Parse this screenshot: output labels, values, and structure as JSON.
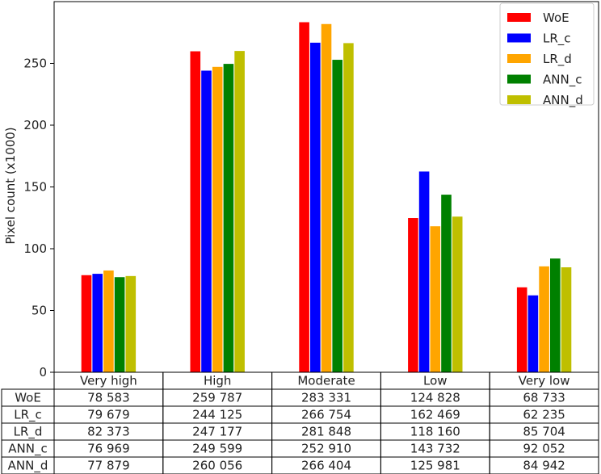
{
  "chart_data": {
    "type": "bar",
    "ylabel": "Pixel count (x1000)",
    "ylim": [
      0,
      300
    ],
    "yticks": [
      0,
      50,
      100,
      150,
      200,
      250
    ],
    "legend_position": "top-right",
    "categories": [
      "Very high",
      "High",
      "Moderate",
      "Low",
      "Very low"
    ],
    "series": [
      {
        "name": "WoE",
        "color": "#ff0000",
        "values": [
          78.583,
          259.787,
          283.331,
          124.828,
          68.733
        ],
        "table": [
          "78 583",
          "259 787",
          "283 331",
          "124 828",
          "68 733"
        ]
      },
      {
        "name": "LR_c",
        "color": "#0000ff",
        "values": [
          79.679,
          244.125,
          266.754,
          162.469,
          62.235
        ],
        "table": [
          "79 679",
          "244 125",
          "266 754",
          "162 469",
          "62 235"
        ]
      },
      {
        "name": "LR_d",
        "color": "#ffa500",
        "values": [
          82.373,
          247.177,
          281.848,
          118.16,
          85.704
        ],
        "table": [
          "82 373",
          "247 177",
          "281 848",
          "118 160",
          "85 704"
        ]
      },
      {
        "name": "ANN_c",
        "color": "#008000",
        "values": [
          76.969,
          249.599,
          252.91,
          143.732,
          92.052
        ],
        "table": [
          "76 969",
          "249 599",
          "252 910",
          "143 732",
          "92 052"
        ]
      },
      {
        "name": "ANN_d",
        "color": "#bfbf00",
        "values": [
          77.879,
          260.056,
          266.404,
          125.981,
          84.942
        ],
        "table": [
          "77 879",
          "260 056",
          "266 404",
          "125 981",
          "84 942"
        ]
      }
    ]
  }
}
